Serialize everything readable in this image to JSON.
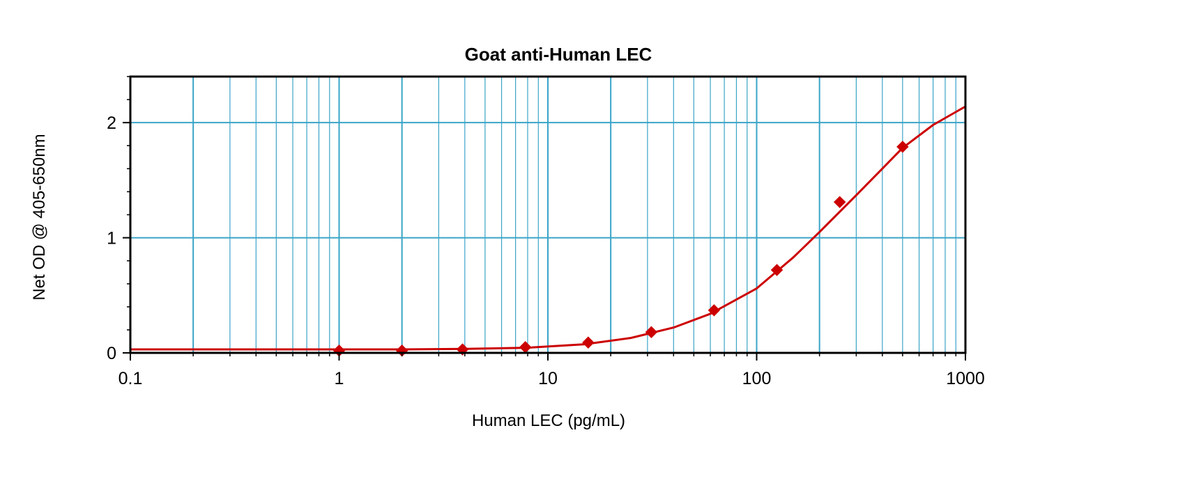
{
  "chart_data": {
    "type": "scatter",
    "title": "Goat anti-Human LEC",
    "xlabel": "Human LEC (pg/mL)",
    "ylabel": "Net OD @ 405-650nm",
    "x_scale": "log",
    "xlim": [
      0.1,
      1000
    ],
    "ylim": [
      0,
      2.4
    ],
    "x_ticks": [
      0.1,
      1,
      10,
      100,
      1000
    ],
    "x_tick_labels": [
      "0.1",
      "1",
      "10",
      "100",
      "1000"
    ],
    "y_ticks": [
      0,
      1,
      2
    ],
    "y_tick_labels": [
      "0",
      "1",
      "2"
    ],
    "grid": true,
    "legend": "none",
    "series": [
      {
        "x": [
          1,
          2,
          3.9,
          7.8,
          15.6,
          31.3,
          62.5,
          125,
          250,
          500
        ],
        "y": [
          0.02,
          0.02,
          0.03,
          0.05,
          0.09,
          0.18,
          0.37,
          0.72,
          1.31,
          1.79
        ],
        "color": "#cc0000",
        "marker": "diamond"
      }
    ],
    "fit_curve": {
      "color": "#cc0000",
      "x": [
        0.1,
        0.3,
        1,
        2,
        4,
        8,
        15,
        25,
        40,
        60,
        100,
        150,
        200,
        300,
        400,
        500,
        700,
        1000
      ],
      "y": [
        0.03,
        0.03,
        0.03,
        0.03,
        0.035,
        0.045,
        0.075,
        0.13,
        0.22,
        0.34,
        0.56,
        0.83,
        1.05,
        1.37,
        1.6,
        1.78,
        1.98,
        2.14
      ]
    },
    "colors": {
      "grid": "#3aa4c8",
      "frame": "#000000",
      "series": "#cc0000"
    }
  }
}
